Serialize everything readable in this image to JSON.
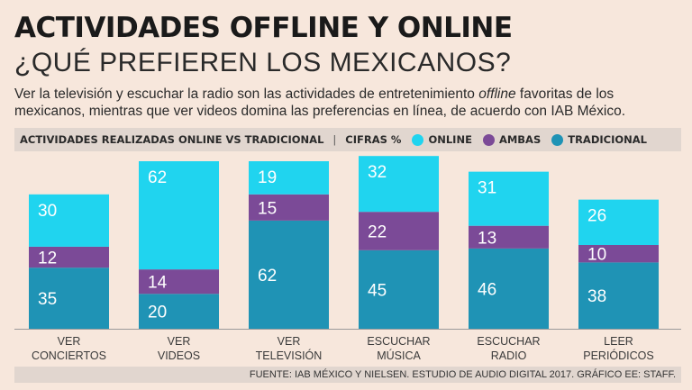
{
  "header": {
    "title": "ACTIVIDADES OFFLINE Y ONLINE",
    "subtitle": "¿QUÉ PREFIEREN LOS MEXICANOS?",
    "desc_part1": "Ver la televisión y escuchar la radio son las actividades de entretenimiento ",
    "desc_italic": "offline",
    "desc_part2": " favoritas de los mexicanos, mientras que ver videos domina las preferencias en línea, de acuerdo con IAB México."
  },
  "legend": {
    "title": "ACTIVIDADES REALIZADAS ONLINE VS TRADICIONAL",
    "separator": "|",
    "unit": "CIFRAS %",
    "items": [
      {
        "label": "ONLINE",
        "color": "#20d4ef"
      },
      {
        "label": "AMBAS",
        "color": "#7b4a97"
      },
      {
        "label": "TRADICIONAL",
        "color": "#1f93b5"
      }
    ]
  },
  "chart_data": {
    "type": "bar",
    "stacked": true,
    "categories": [
      [
        "VER",
        "CONCIERTOS"
      ],
      [
        "VER",
        "VIDEOS"
      ],
      [
        "VER",
        "TELEVISIÓN"
      ],
      [
        "ESCUCHAR",
        "MÚSICA"
      ],
      [
        "ESCUCHAR",
        "RADIO"
      ],
      [
        "LEER",
        "PERIÓDICOS"
      ]
    ],
    "series": [
      {
        "name": "TRADICIONAL",
        "color": "#1f93b5",
        "values": [
          35,
          20,
          62,
          45,
          46,
          38
        ]
      },
      {
        "name": "AMBAS",
        "color": "#7b4a97",
        "values": [
          12,
          14,
          15,
          22,
          13,
          10
        ]
      },
      {
        "name": "ONLINE",
        "color": "#20d4ef",
        "values": [
          30,
          62,
          19,
          32,
          31,
          26
        ]
      }
    ],
    "ylim": [
      0,
      100
    ],
    "grid": false,
    "legend_position": "top"
  },
  "footer": {
    "source": "FUENTE: IAB MÉXICO Y NIELSEN. ESTUDIO DE AUDIO DIGITAL 2017. GRÁFICO EE: STAFF."
  }
}
